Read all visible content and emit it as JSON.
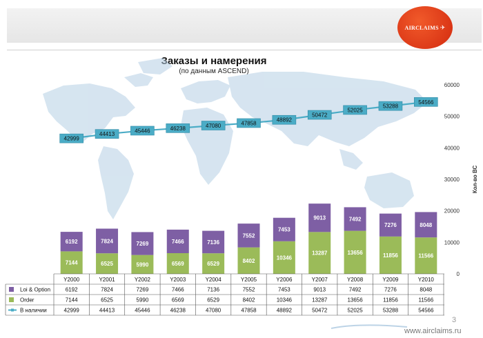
{
  "header": {
    "logo_text": "AIRCLAIMS",
    "logo_mark": "✈"
  },
  "chart_data": {
    "type": "bar",
    "title": "Заказы и намерения",
    "subtitle": "(по данным ASCEND)",
    "ylabel": "Кол-во ВС",
    "ylim": [
      0,
      60000
    ],
    "yticks": [
      0,
      10000,
      20000,
      30000,
      40000,
      50000,
      60000
    ],
    "categories": [
      "Y2000",
      "Y2001",
      "Y2002",
      "Y2003",
      "Y2004",
      "Y2005",
      "Y2006",
      "Y2007",
      "Y2008",
      "Y2009",
      "Y2010"
    ],
    "series": [
      {
        "name": "Loi & Option",
        "kind": "stacked-bar",
        "color": "#7e5fa4",
        "values": [
          6192,
          7824,
          7269,
          7466,
          7136,
          7552,
          7453,
          9013,
          7492,
          7276,
          8048
        ]
      },
      {
        "name": "Order",
        "kind": "stacked-bar",
        "color": "#9bbb59",
        "values": [
          7144,
          6525,
          5990,
          6569,
          6529,
          8402,
          10346,
          13287,
          13656,
          11856,
          11566
        ]
      },
      {
        "name": "В наличии",
        "kind": "line",
        "color": "#4bacc6",
        "values": [
          42999,
          44413,
          45446,
          46238,
          47080,
          47858,
          48892,
          50472,
          52025,
          53288,
          54566
        ]
      }
    ],
    "legend_placement": "table-below",
    "grid": false,
    "background": "world-map"
  },
  "footer": {
    "page_number": "3",
    "site": "www.airclaims.ru"
  }
}
